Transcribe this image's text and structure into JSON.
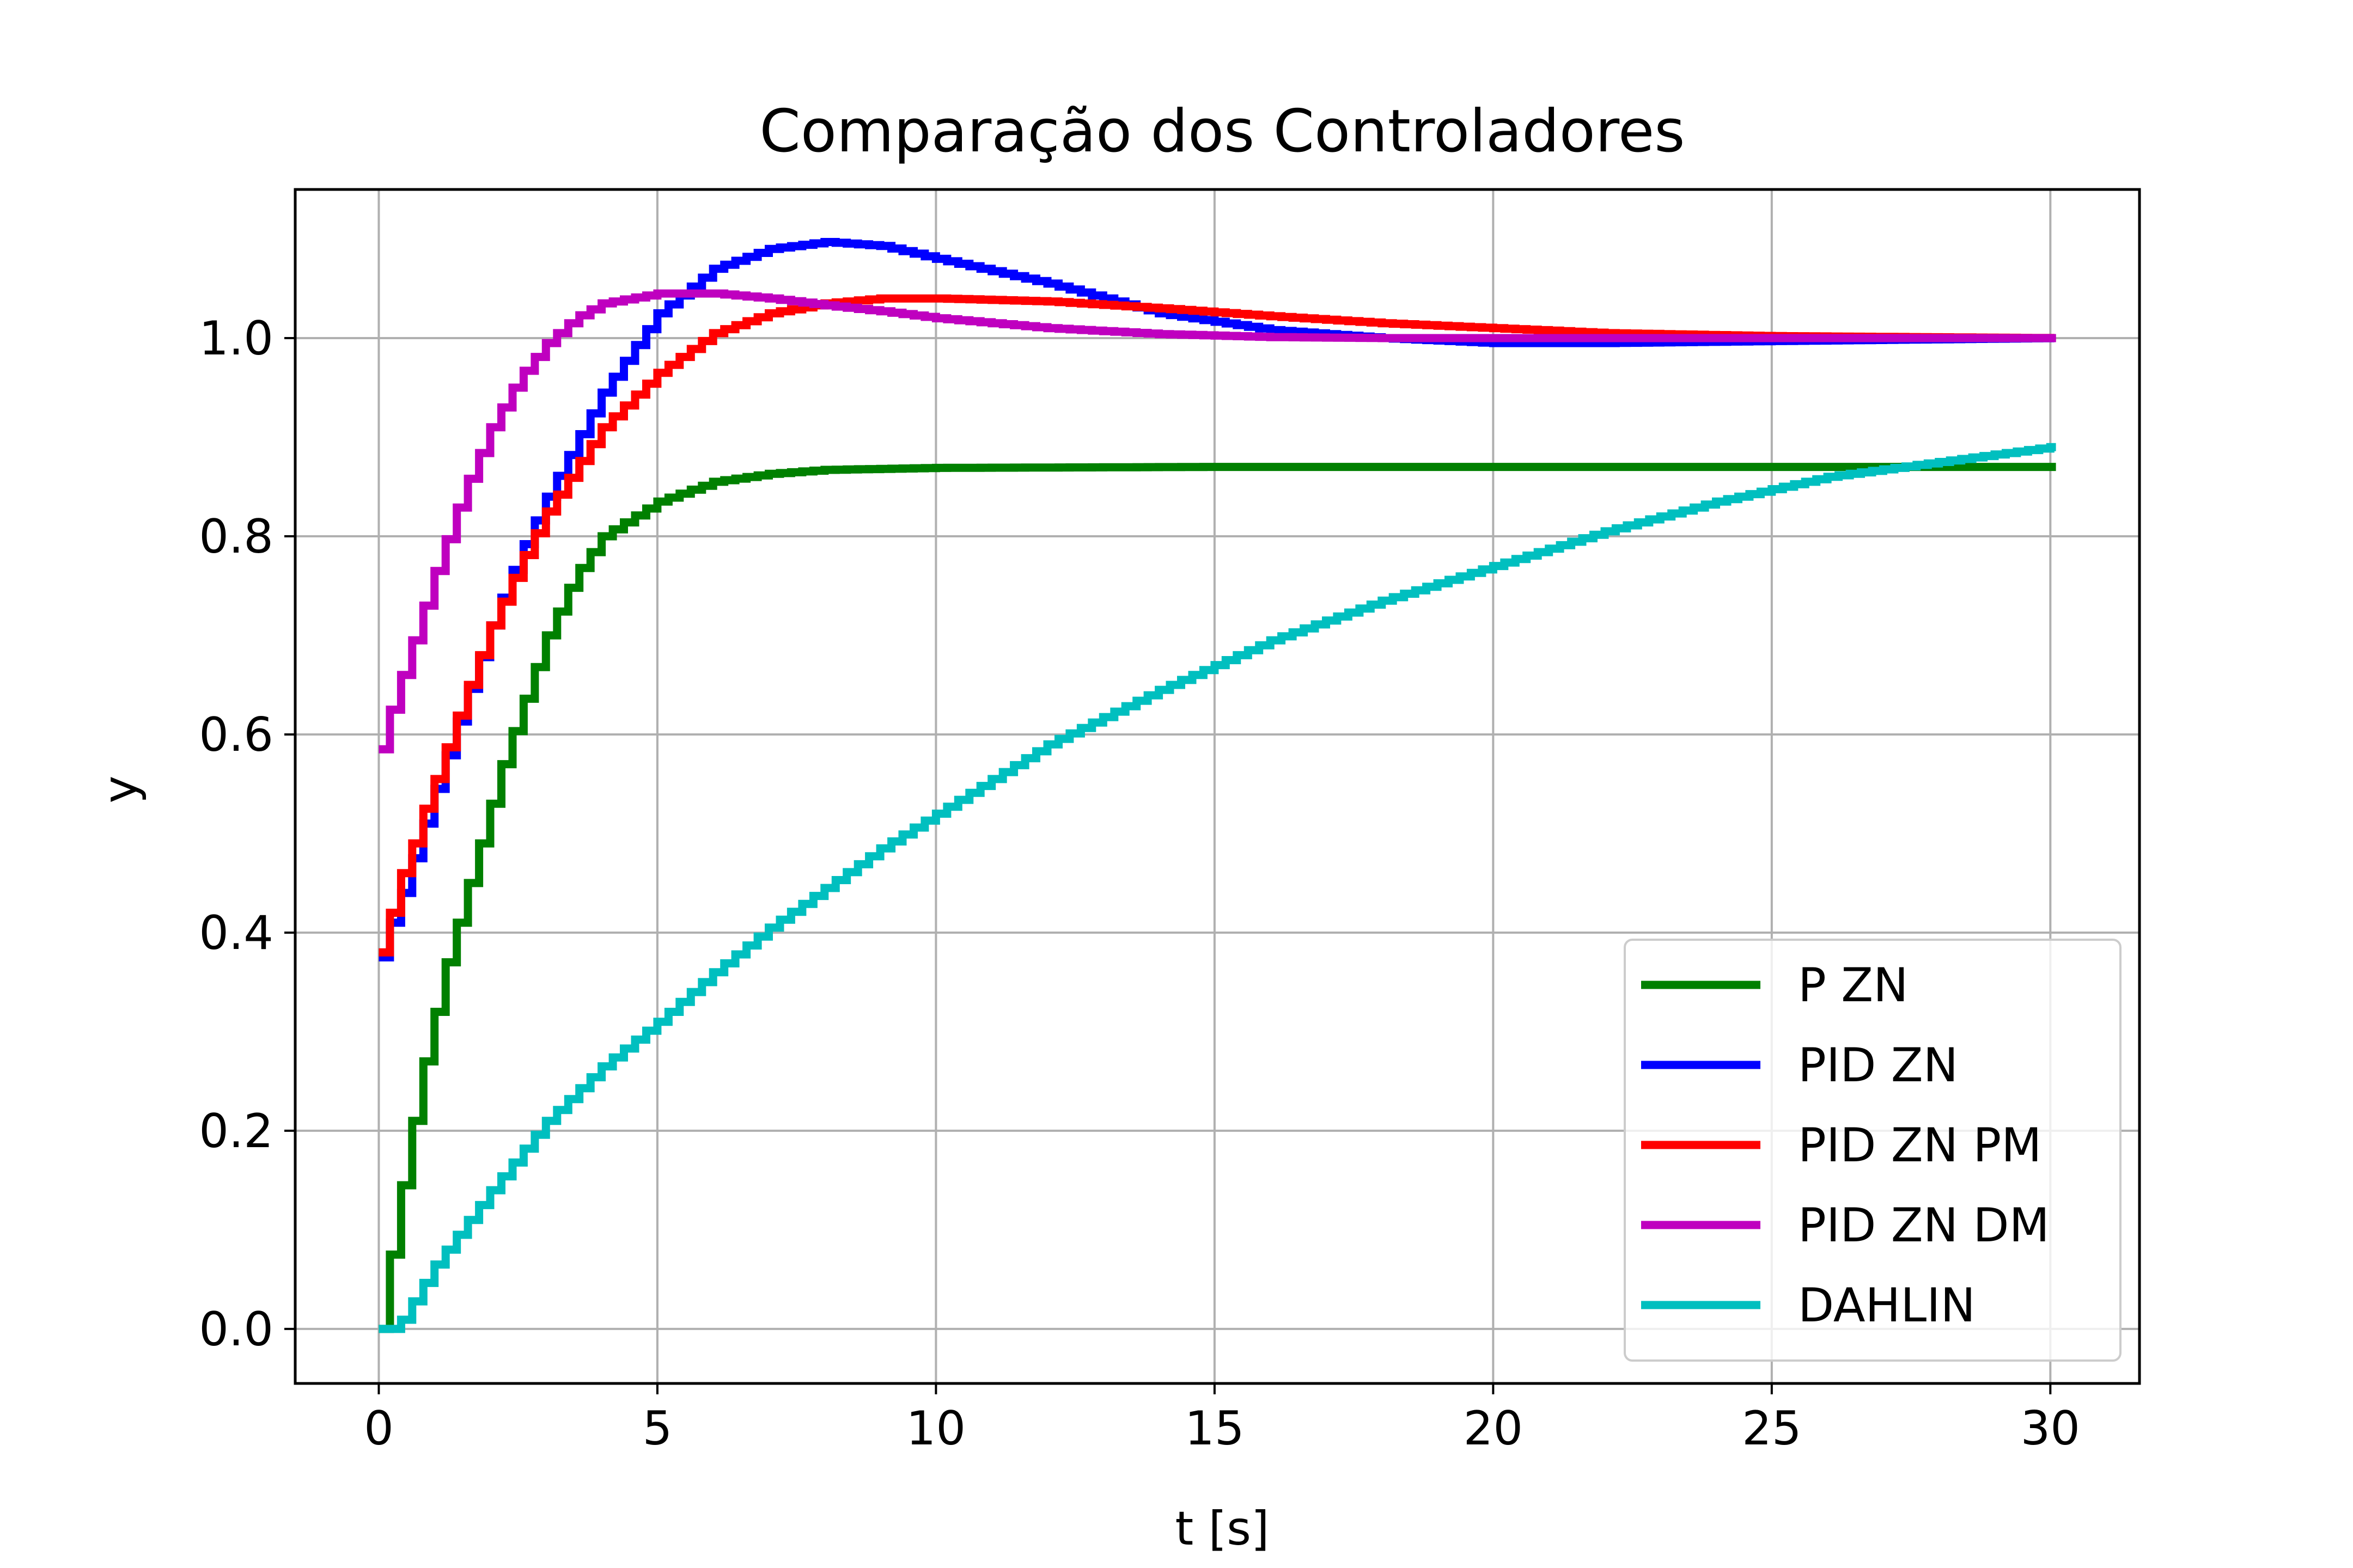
{
  "chart_data": {
    "type": "line",
    "title": "Comparação dos Controladores",
    "xlabel": "t [s]",
    "ylabel": "y",
    "xlim": [
      -1.5,
      31.6
    ],
    "ylim": [
      -0.055,
      1.15
    ],
    "xticks": [
      0,
      5,
      10,
      15,
      20,
      25,
      30
    ],
    "yticks": [
      0.0,
      0.2,
      0.4,
      0.6,
      0.8,
      1.0
    ],
    "xtick_labels": [
      "0",
      "5",
      "10",
      "15",
      "20",
      "25",
      "30"
    ],
    "ytick_labels": [
      "0.0",
      "0.2",
      "0.4",
      "0.6",
      "0.8",
      "1.0"
    ],
    "grid": true,
    "legend_position": "bottom-right",
    "step": 0.2,
    "series": [
      {
        "name": "P ZN",
        "color": "#008000",
        "x": [
          0,
          0.2,
          0.4,
          0.6,
          0.8,
          1.0,
          1.2,
          1.4,
          1.6,
          1.8,
          2.0,
          2.2,
          2.5,
          3.0,
          3.5,
          4.0,
          5.0,
          6.0,
          7.0,
          8.0,
          10.0,
          15.0,
          20.0,
          25.0,
          30.0
        ],
        "y": [
          0.0,
          0.075,
          0.145,
          0.21,
          0.27,
          0.32,
          0.37,
          0.41,
          0.45,
          0.49,
          0.53,
          0.57,
          0.62,
          0.7,
          0.76,
          0.8,
          0.835,
          0.855,
          0.863,
          0.867,
          0.869,
          0.87,
          0.87,
          0.87,
          0.87
        ]
      },
      {
        "name": "PID ZN",
        "color": "#0000ff",
        "x": [
          0,
          0.2,
          0.4,
          0.6,
          0.8,
          1.0,
          1.5,
          2.0,
          2.5,
          3.0,
          4.0,
          5.0,
          6.0,
          7.0,
          8.0,
          9.0,
          10.0,
          12.0,
          14.0,
          16.0,
          18.0,
          20.0,
          22.0,
          25.0,
          30.0
        ],
        "y": [
          0.375,
          0.41,
          0.44,
          0.475,
          0.51,
          0.545,
          0.63,
          0.71,
          0.78,
          0.84,
          0.945,
          1.025,
          1.07,
          1.09,
          1.097,
          1.093,
          1.08,
          1.055,
          1.025,
          1.008,
          1.0,
          0.995,
          0.995,
          0.997,
          1.0
        ]
      },
      {
        "name": "PID ZN PM",
        "color": "#ff0000",
        "x": [
          0,
          0.2,
          0.4,
          0.6,
          0.8,
          1.0,
          1.5,
          2.0,
          2.5,
          3.0,
          4.0,
          5.0,
          6.0,
          7.0,
          8.0,
          9.0,
          10.0,
          12.0,
          14.0,
          16.0,
          18.0,
          20.0,
          22.0,
          25.0,
          30.0
        ],
        "y": [
          0.38,
          0.42,
          0.46,
          0.49,
          0.525,
          0.555,
          0.635,
          0.71,
          0.77,
          0.825,
          0.91,
          0.965,
          1.005,
          1.025,
          1.035,
          1.04,
          1.04,
          1.037,
          1.03,
          1.022,
          1.015,
          1.01,
          1.005,
          1.002,
          1.0
        ]
      },
      {
        "name": "PID ZN DM",
        "color": "#bf00bf",
        "x": [
          0,
          0.2,
          0.4,
          0.6,
          0.8,
          1.0,
          1.5,
          2.0,
          2.5,
          3.0,
          3.5,
          4.0,
          5.0,
          6.0,
          7.0,
          8.0,
          9.0,
          10.0,
          12.0,
          14.0,
          16.0,
          18.0,
          20.0,
          25.0,
          30.0
        ],
        "y": [
          0.585,
          0.625,
          0.66,
          0.695,
          0.73,
          0.765,
          0.845,
          0.91,
          0.96,
          0.995,
          1.02,
          1.035,
          1.045,
          1.045,
          1.04,
          1.033,
          1.027,
          1.02,
          1.01,
          1.004,
          1.001,
          1.0,
          1.0,
          1.0,
          1.0
        ]
      },
      {
        "name": "DAHLIN",
        "color": "#00bfbf",
        "x": [
          0,
          0.3,
          1,
          2,
          3,
          4,
          5,
          6,
          7,
          8,
          9,
          10,
          12,
          14,
          16,
          18,
          20,
          22,
          24,
          26,
          28,
          30
        ],
        "y": [
          0.0,
          0.0,
          0.065,
          0.14,
          0.21,
          0.265,
          0.31,
          0.36,
          0.405,
          0.445,
          0.485,
          0.52,
          0.59,
          0.645,
          0.695,
          0.735,
          0.77,
          0.805,
          0.835,
          0.86,
          0.875,
          0.89
        ]
      }
    ]
  }
}
